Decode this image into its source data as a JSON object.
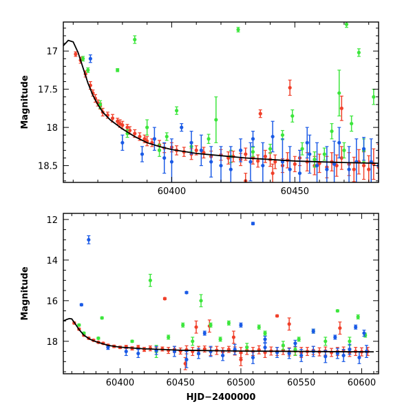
{
  "chart_data": [
    {
      "type": "scatter",
      "title": "",
      "ylabel": "Magnitude",
      "xlabel": "",
      "xlim": [
        60356,
        60484
      ],
      "ylim": [
        18.72,
        16.62
      ],
      "y_inverted": true,
      "x_ticks": [
        60400,
        60450
      ],
      "y_ticks": [
        17,
        17.5,
        18,
        18.5
      ],
      "y_tick_labels": [
        "17",
        "17.5",
        "18",
        "18.5"
      ],
      "grid": false,
      "legend": "none",
      "colors": {
        "red": "#f0402a",
        "green": "#3ce63c",
        "blue": "#1a5ae6",
        "model": "#000000"
      },
      "model_curve": {
        "x": [
          60356,
          60358,
          60360,
          60362,
          60364,
          60366,
          60368,
          60370,
          60372,
          60375,
          60380,
          60385,
          60390,
          60395,
          60400,
          60410,
          60420,
          60430,
          60440,
          60450,
          60460,
          60470,
          60484
        ],
        "y": [
          16.93,
          16.86,
          16.88,
          17.02,
          17.22,
          17.42,
          17.58,
          17.7,
          17.8,
          17.9,
          18.02,
          18.12,
          18.2,
          18.25,
          18.29,
          18.34,
          18.37,
          18.4,
          18.42,
          18.44,
          18.45,
          18.46,
          18.47
        ]
      },
      "series": [
        {
          "color": "red",
          "x": [
            60361,
            60363,
            60365,
            60367,
            60368,
            60369,
            60370,
            60371,
            60372,
            60374,
            60376,
            60378,
            60379,
            60380,
            60382,
            60383,
            60385,
            60387,
            60389,
            60390,
            60392,
            60395,
            60397,
            60400,
            60402,
            60405,
            60408,
            60410,
            60413,
            60416,
            60420,
            60423,
            60425,
            60428,
            60430,
            60433,
            60435,
            60438,
            60440,
            60442,
            60445,
            60447,
            60450,
            60452,
            60455,
            60458,
            60460,
            60463,
            60465,
            60467,
            60469,
            60472,
            60474,
            60476,
            60478,
            60480,
            60482,
            60484,
            60436,
            60448,
            60469,
            60430,
            60441
          ],
          "y": [
            17.04,
            17.12,
            17.3,
            17.45,
            17.55,
            17.62,
            17.68,
            17.72,
            17.8,
            17.84,
            17.88,
            17.92,
            17.95,
            17.97,
            18.0,
            18.04,
            18.08,
            18.12,
            18.15,
            18.18,
            18.2,
            18.23,
            18.27,
            18.26,
            18.3,
            18.32,
            18.35,
            18.3,
            18.33,
            18.38,
            18.36,
            18.4,
            18.38,
            18.42,
            18.35,
            18.4,
            18.44,
            18.38,
            18.42,
            18.45,
            18.5,
            18.43,
            18.48,
            18.4,
            18.45,
            18.5,
            18.47,
            18.52,
            18.45,
            18.5,
            18.4,
            18.48,
            18.55,
            18.45,
            18.5,
            18.55,
            18.48,
            18.52,
            17.82,
            17.48,
            17.75,
            18.7,
            18.6
          ],
          "err": [
            0.03,
            0.04,
            0.04,
            0.05,
            0.04,
            0.05,
            0.04,
            0.04,
            0.05,
            0.04,
            0.05,
            0.04,
            0.05,
            0.05,
            0.04,
            0.05,
            0.05,
            0.05,
            0.05,
            0.06,
            0.05,
            0.06,
            0.06,
            0.06,
            0.06,
            0.06,
            0.07,
            0.06,
            0.07,
            0.07,
            0.07,
            0.08,
            0.07,
            0.08,
            0.08,
            0.08,
            0.08,
            0.08,
            0.09,
            0.09,
            0.09,
            0.1,
            0.1,
            0.1,
            0.12,
            0.12,
            0.12,
            0.14,
            0.12,
            0.14,
            0.15,
            0.15,
            0.16,
            0.16,
            0.18,
            0.18,
            0.2,
            0.3,
            0.05,
            0.1,
            0.16,
            0.1,
            0.12
          ]
        },
        {
          "color": "green",
          "x": [
            60364,
            60366,
            60371,
            60378,
            60382,
            60385,
            60390,
            60395,
            60398,
            60402,
            60408,
            60415,
            60418,
            60424,
            60427,
            60433,
            60440,
            60445,
            60449,
            60453,
            60458,
            60462,
            60465,
            60468,
            60470,
            60471,
            60473,
            60476,
            60478,
            60482
          ],
          "y": [
            17.1,
            17.25,
            17.7,
            17.25,
            18.08,
            16.85,
            18.0,
            18.3,
            18.12,
            17.78,
            18.25,
            18.15,
            17.9,
            18.38,
            16.72,
            18.32,
            18.28,
            18.1,
            17.85,
            18.28,
            18.42,
            18.35,
            18.05,
            17.55,
            18.3,
            16.65,
            17.95,
            17.02,
            18.3,
            17.6
          ],
          "err": [
            0.03,
            0.03,
            0.05,
            0.02,
            0.05,
            0.05,
            0.1,
            0.08,
            0.05,
            0.05,
            0.06,
            0.06,
            0.3,
            0.08,
            0.03,
            0.06,
            0.06,
            0.06,
            0.08,
            0.08,
            0.1,
            0.08,
            0.1,
            0.3,
            0.1,
            0.04,
            0.1,
            0.05,
            0.15,
            0.1
          ]
        },
        {
          "color": "blue",
          "x": [
            60367,
            60380,
            60388,
            60393,
            60397,
            60400,
            60404,
            60408,
            60412,
            60416,
            60420,
            60424,
            60428,
            60432,
            60437,
            60441,
            60445,
            60448,
            60452,
            60456,
            60459,
            60463,
            60466,
            60468,
            60472,
            60475,
            60478,
            60481,
            60484,
            60433,
            60455
          ],
          "y": [
            17.1,
            18.2,
            18.35,
            18.15,
            18.4,
            18.45,
            18.0,
            18.2,
            18.3,
            18.45,
            18.5,
            18.55,
            18.3,
            18.45,
            18.5,
            18.12,
            18.45,
            18.55,
            18.6,
            18.35,
            18.5,
            18.55,
            18.48,
            18.2,
            18.55,
            18.45,
            18.28,
            18.45,
            18.5,
            18.15,
            18.2
          ],
          "err": [
            0.05,
            0.1,
            0.1,
            0.15,
            0.2,
            0.3,
            0.05,
            0.15,
            0.2,
            0.2,
            0.25,
            0.3,
            0.15,
            0.25,
            0.3,
            0.2,
            0.3,
            0.3,
            0.3,
            0.25,
            0.3,
            0.3,
            0.3,
            0.2,
            0.3,
            0.3,
            0.15,
            0.3,
            0.3,
            0.1,
            0.2
          ]
        }
      ]
    },
    {
      "type": "scatter",
      "title": "",
      "ylabel": "Magnitude",
      "xlabel": "HJD−2400000",
      "xlim": [
        60353,
        60614
      ],
      "ylim": [
        19.6,
        11.7
      ],
      "y_inverted": true,
      "x_ticks": [
        60400,
        60450,
        60500,
        60550,
        60600
      ],
      "y_ticks": [
        12,
        14,
        16,
        18
      ],
      "y_tick_labels": [
        "12",
        "14",
        "16",
        "18"
      ],
      "grid": false,
      "legend": "none",
      "colors": {
        "red": "#f0402a",
        "green": "#3ce63c",
        "blue": "#1a5ae6",
        "model": "#000000"
      },
      "model_curve": {
        "x": [
          60353,
          60356,
          60358,
          60360,
          60363,
          60366,
          60370,
          60375,
          60380,
          60390,
          60400,
          60420,
          60450,
          60500,
          60550,
          60600,
          60610
        ],
        "y": [
          17.0,
          16.92,
          16.88,
          16.9,
          17.15,
          17.42,
          17.7,
          17.9,
          18.02,
          18.2,
          18.29,
          18.37,
          18.44,
          18.48,
          18.5,
          18.52,
          18.52
        ]
      },
      "series": [
        {
          "color": "red",
          "x": [
            60362,
            60366,
            60370,
            60374,
            60378,
            60382,
            60386,
            60390,
            60395,
            60400,
            60405,
            60410,
            60415,
            60420,
            60425,
            60430,
            60435,
            60440,
            60445,
            60450,
            60455,
            60460,
            60465,
            60470,
            60475,
            60480,
            60485,
            60490,
            60495,
            60500,
            60505,
            60510,
            60515,
            60520,
            60525,
            60530,
            60535,
            60540,
            60545,
            60550,
            60555,
            60560,
            60565,
            60570,
            60575,
            60580,
            60585,
            60590,
            60595,
            60600,
            60605,
            60437,
            60463,
            60454,
            60530,
            60540,
            60474,
            60494,
            60582,
            60500
          ],
          "y": [
            17.1,
            17.4,
            17.7,
            17.85,
            17.95,
            18.05,
            18.1,
            18.2,
            18.25,
            18.3,
            18.28,
            18.35,
            18.3,
            18.4,
            18.35,
            18.42,
            18.38,
            18.45,
            18.4,
            18.48,
            18.42,
            18.5,
            18.45,
            18.38,
            18.5,
            18.45,
            18.52,
            18.4,
            18.48,
            18.55,
            18.45,
            18.5,
            18.42,
            18.55,
            18.48,
            18.5,
            18.45,
            18.52,
            18.48,
            18.55,
            18.5,
            18.45,
            18.52,
            18.48,
            18.55,
            18.5,
            18.48,
            18.55,
            18.5,
            18.52,
            18.5,
            15.9,
            17.3,
            19.1,
            16.75,
            17.15,
            17.25,
            17.8,
            17.35,
            18.9
          ],
          "err": [
            0.05,
            0.05,
            0.05,
            0.05,
            0.05,
            0.05,
            0.05,
            0.06,
            0.06,
            0.06,
            0.08,
            0.08,
            0.1,
            0.1,
            0.12,
            0.12,
            0.1,
            0.15,
            0.15,
            0.15,
            0.2,
            0.2,
            0.2,
            0.15,
            0.2,
            0.2,
            0.2,
            0.15,
            0.2,
            0.25,
            0.2,
            0.2,
            0.2,
            0.25,
            0.2,
            0.2,
            0.2,
            0.2,
            0.2,
            0.25,
            0.2,
            0.2,
            0.2,
            0.2,
            0.2,
            0.2,
            0.2,
            0.2,
            0.2,
            0.2,
            0.2,
            0.05,
            0.3,
            0.3,
            0.05,
            0.3,
            0.3,
            0.3,
            0.3,
            0.3
          ]
        },
        {
          "color": "green",
          "x": [
            60366,
            60370,
            60382,
            60385,
            60410,
            60425,
            60440,
            60452,
            60467,
            60475,
            60483,
            60490,
            60505,
            60520,
            60535,
            60548,
            60560,
            60570,
            60580,
            60590,
            60597,
            60603,
            60430,
            60460,
            60515,
            60545
          ],
          "y": [
            17.2,
            17.6,
            17.85,
            16.85,
            18.0,
            15.0,
            17.8,
            17.2,
            16.0,
            17.2,
            17.9,
            17.1,
            18.3,
            17.6,
            18.2,
            17.9,
            17.5,
            18.0,
            16.5,
            18.0,
            16.8,
            17.7,
            18.5,
            18.0,
            17.3,
            18.4
          ],
          "err": [
            0.05,
            0.05,
            0.05,
            0.05,
            0.05,
            0.3,
            0.1,
            0.1,
            0.3,
            0.1,
            0.1,
            0.1,
            0.2,
            0.1,
            0.2,
            0.1,
            0.1,
            0.2,
            0.05,
            0.2,
            0.1,
            0.1,
            0.3,
            0.2,
            0.1,
            0.3
          ]
        },
        {
          "color": "blue",
          "x": [
            60368,
            60374,
            60390,
            60405,
            60415,
            60430,
            60445,
            60455,
            60465,
            60475,
            60485,
            60495,
            60510,
            60520,
            60530,
            60540,
            60550,
            60560,
            60570,
            60580,
            60585,
            60590,
            60598,
            60604,
            60510,
            60455,
            60470,
            60500,
            60520,
            60545,
            60560,
            60578,
            60595,
            60602
          ],
          "y": [
            16.2,
            13.0,
            18.3,
            18.5,
            18.6,
            18.45,
            18.5,
            15.6,
            18.6,
            18.5,
            18.7,
            18.4,
            18.8,
            18.3,
            18.55,
            18.6,
            18.7,
            18.5,
            18.75,
            18.6,
            18.7,
            18.4,
            18.8,
            18.5,
            12.2,
            18.9,
            17.6,
            17.2,
            17.9,
            18.1,
            17.5,
            17.8,
            17.3,
            17.6
          ],
          "err": [
            0.05,
            0.2,
            0.1,
            0.2,
            0.2,
            0.2,
            0.25,
            0.05,
            0.25,
            0.25,
            0.25,
            0.25,
            0.3,
            0.2,
            0.25,
            0.25,
            0.3,
            0.25,
            0.3,
            0.25,
            0.3,
            0.25,
            0.3,
            0.3,
            0.06,
            0.4,
            0.1,
            0.1,
            0.15,
            0.15,
            0.1,
            0.1,
            0.1,
            0.15
          ]
        }
      ]
    }
  ]
}
